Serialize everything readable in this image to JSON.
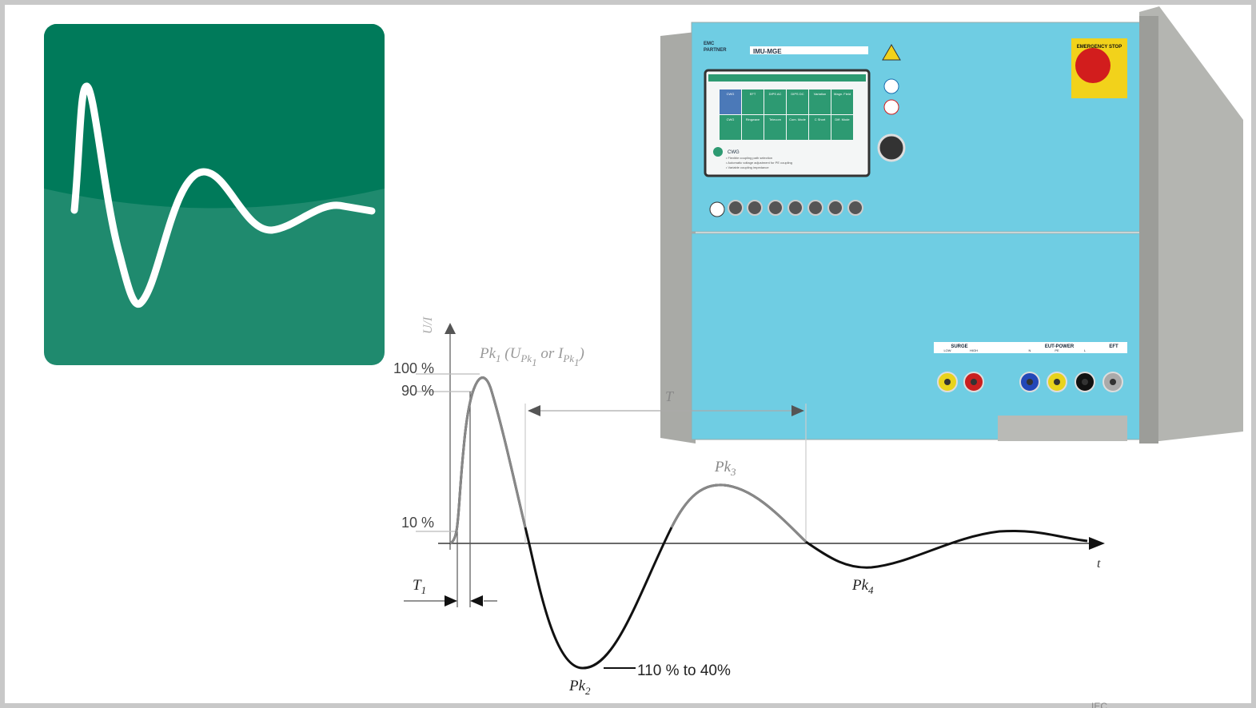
{
  "diagram": {
    "y_axis_label": "U/I",
    "x_axis_label": "t",
    "peak1_label": [
      {
        "text": "Pk",
        "level": 0
      },
      {
        "text": "1",
        "level": 1
      },
      {
        "text": " (",
        "level": 0
      },
      {
        "text": "U",
        "level": 0
      },
      {
        "text": "Pk",
        "level": 1
      },
      {
        "text": "1",
        "level": 2
      },
      {
        "text": " or ",
        "level": 0
      },
      {
        "text": "I",
        "level": 0
      },
      {
        "text": "Pk",
        "level": 1
      },
      {
        "text": "1",
        "level": 2
      },
      {
        "text": ")",
        "level": 0
      }
    ],
    "level_labels": [
      "100 %",
      "90 %",
      "10 %"
    ],
    "period_label": "T",
    "rise_label": [
      {
        "text": "T",
        "level": 0
      },
      {
        "text": "1",
        "level": 1
      }
    ],
    "peak2_label": [
      {
        "text": "Pk",
        "level": 0
      },
      {
        "text": "2",
        "level": 1
      }
    ],
    "peak2_note": "110 % to 40%",
    "peak3_label": [
      {
        "text": "Pk",
        "level": 0
      },
      {
        "text": "3",
        "level": 1
      }
    ],
    "peak4_label": [
      {
        "text": "Pk",
        "level": 0
      },
      {
        "text": "4",
        "level": 1
      }
    ],
    "source_mark": "IEC"
  },
  "device": {
    "brand": [
      "EMC",
      "PARTNER"
    ],
    "model": "IMU-MGE",
    "emergency": "EMERGENCY STOP",
    "screen_tiles": [
      "CWG",
      "EFT",
      "DIPS AC",
      "DIPS DC",
      "Variation",
      "Magn. Field",
      "CWG",
      "Ringwave",
      "Telecom",
      "Com. Mode",
      "C Short",
      "Diff. Mode"
    ],
    "screen_title": "CWG",
    "screen_notes": [
      "• Flexible coupling path selection",
      "• Automatic voltage adjustment for PE coupling",
      "• Variable coupling impedance"
    ],
    "port_groups": [
      "SURGE",
      "EUT-POWER",
      "EFT"
    ],
    "port_labels": [
      "LOW",
      "HIGH",
      "N",
      "PE",
      "L"
    ]
  }
}
